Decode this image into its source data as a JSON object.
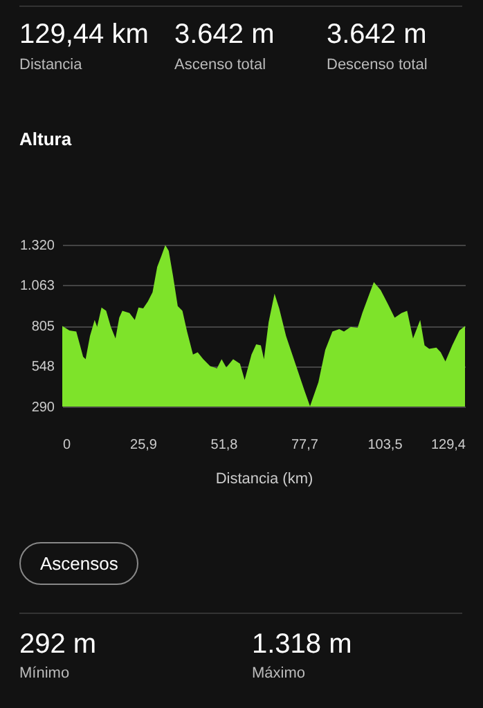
{
  "chart_data": {
    "type": "area",
    "title": "Altura",
    "xlabel": "Distancia (km)",
    "x": [
      0,
      2.3,
      4.5,
      6.7,
      7.5,
      8.9,
      10.4,
      11.2,
      12.6,
      14.1,
      15.6,
      17.1,
      18.3,
      19.3,
      21.6,
      23.3,
      24.5,
      26.0,
      27.5,
      29.0,
      30.5,
      31.9,
      33.1,
      34.2,
      35.6,
      37.1,
      38.6,
      40.1,
      42.0,
      43.5,
      45.3,
      47.5,
      49.7,
      51.2,
      52.7,
      54.9,
      57.1,
      58.6,
      60.8,
      62.3,
      63.8,
      64.8,
      66.3,
      68.2,
      69.7,
      71.9,
      74.9,
      77.9,
      79.6,
      82.3,
      84.5,
      86.8,
      89.0,
      90.5,
      92.7,
      94.9,
      96.4,
      98.6,
      100.1,
      102.3,
      104.6,
      106.8,
      109.0,
      110.8,
      112.7,
      115.0,
      116.4,
      117.9,
      120.2,
      121.6,
      123.1,
      125.3,
      127.6,
      129.4
    ],
    "series": [
      {
        "color": "#7ee32a",
        "values": [
          803,
          774,
          768,
          607,
          592,
          739,
          841,
          797,
          921,
          900,
          797,
          724,
          856,
          900,
          885,
          841,
          921,
          915,
          959,
          1017,
          1179,
          1252,
          1318,
          1281,
          1120,
          929,
          900,
          768,
          621,
          636,
          592,
          548,
          533,
          592,
          539,
          592,
          563,
          460,
          621,
          686,
          680,
          592,
          827,
          1009,
          915,
          739,
          563,
          387,
          292,
          445,
          651,
          768,
          783,
          768,
          797,
          792,
          885,
          1003,
          1082,
          1032,
          944,
          856,
          885,
          900,
          724,
          841,
          680,
          657,
          665,
          636,
          577,
          680,
          774,
          803
        ]
      }
    ],
    "xlim": [
      0,
      129.4
    ],
    "xticks": [
      0,
      {
        "value": 25.9,
        "label": "25,9"
      },
      {
        "value": 51.8,
        "label": "51,8"
      },
      {
        "value": 77.7,
        "label": "77,7"
      },
      {
        "value": 103.5,
        "label": "103,5"
      },
      {
        "value": 129.4,
        "label": "129,4"
      }
    ],
    "ylim": [
      290,
      1320
    ],
    "yticks": [
      290,
      548,
      805,
      {
        "value": 1063,
        "label": "1.063"
      },
      {
        "value": 1320,
        "label": "1.320"
      }
    ],
    "grid": "y",
    "annotations": [
      "129,44 km",
      "Distancia",
      "3.642 m",
      "Ascenso total",
      "3.642 m",
      "Descenso total",
      "Ascensos",
      "292 m",
      "Mínimo",
      "1.318 m",
      "Máximo"
    ]
  }
}
